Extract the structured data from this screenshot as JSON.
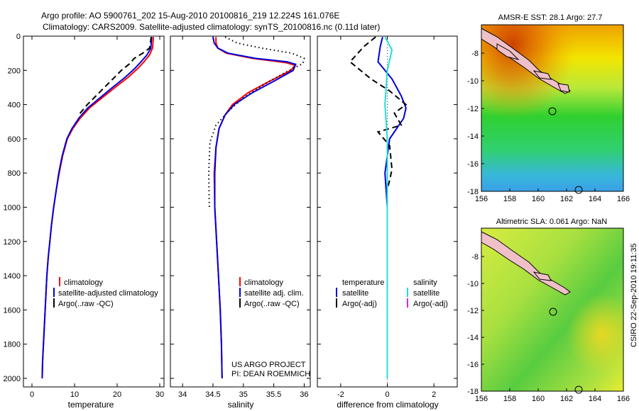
{
  "figure": {
    "title_line1": "Argo profile: AO 5900761_202 15-Aug-2010 20100816_219 12.224S 161.076E",
    "title_line2": "Climatology: CARS2009. Satellite-adjusted climatology: synTS_20100816.nc (0.11d later)",
    "side_label": "CSIRO 22-Sep-2010 19:11:35",
    "project_line1": "US ARGO PROJECT",
    "project_line2": "PI: DEAN ROEMMICH"
  },
  "colors": {
    "climatology": "#ff0000",
    "satellite": "#0000dd",
    "argo": "#000000",
    "salinity_satellite": "#22dddd",
    "salinity_argo_adj": "#dd22dd"
  },
  "chart_data": [
    {
      "type": "line",
      "title": "",
      "xlabel": "temperature",
      "ylabel": "",
      "xlim": [
        -2,
        31
      ],
      "ylim": [
        2050,
        0
      ],
      "x_ticks": [
        "0",
        "10",
        "20",
        "30"
      ],
      "y_ticks": [
        "0",
        "200",
        "400",
        "600",
        "800",
        "1000",
        "1200",
        "1400",
        "1600",
        "1800",
        "2000"
      ],
      "legend": [
        "climatology",
        "satellite-adjusted climatology",
        "Argo(..raw -QC)"
      ],
      "series": [
        {
          "name": "climatology",
          "style": "solid",
          "color_key": "climatology",
          "points": [
            [
              28.5,
              5
            ],
            [
              28.4,
              40
            ],
            [
              28.3,
              70
            ],
            [
              27.6,
              110
            ],
            [
              26.3,
              150
            ],
            [
              24.8,
              190
            ],
            [
              22.6,
              240
            ],
            [
              19.5,
              300
            ],
            [
              16.5,
              360
            ],
            [
              13.5,
              420
            ],
            [
              11.3,
              480
            ],
            [
              9.6,
              540
            ],
            [
              8.3,
              600
            ],
            [
              7.2,
              700
            ],
            [
              6.4,
              800
            ],
            [
              5.7,
              900
            ],
            [
              5.1,
              1000
            ],
            [
              4.6,
              1100
            ],
            [
              4.2,
              1200
            ],
            [
              3.8,
              1300
            ],
            [
              3.5,
              1400
            ],
            [
              3.3,
              1500
            ],
            [
              3.1,
              1600
            ],
            [
              2.9,
              1700
            ],
            [
              2.7,
              1800
            ],
            [
              2.5,
              1900
            ],
            [
              2.4,
              2000
            ]
          ]
        },
        {
          "name": "satellite-adjusted climatology",
          "style": "solid",
          "color_key": "satellite",
          "points": [
            [
              28.1,
              5
            ],
            [
              28.0,
              40
            ],
            [
              27.9,
              70
            ],
            [
              27.0,
              110
            ],
            [
              25.6,
              150
            ],
            [
              24.1,
              190
            ],
            [
              21.9,
              240
            ],
            [
              18.9,
              300
            ],
            [
              16.0,
              360
            ],
            [
              13.1,
              420
            ],
            [
              11.0,
              480
            ],
            [
              9.4,
              540
            ],
            [
              8.2,
              600
            ],
            [
              7.1,
              700
            ],
            [
              6.3,
              800
            ],
            [
              5.7,
              900
            ],
            [
              5.1,
              1000
            ],
            [
              4.6,
              1100
            ],
            [
              4.2,
              1200
            ],
            [
              3.8,
              1300
            ],
            [
              3.5,
              1400
            ],
            [
              3.3,
              1500
            ],
            [
              3.1,
              1600
            ],
            [
              2.9,
              1700
            ],
            [
              2.7,
              1800
            ],
            [
              2.5,
              1900
            ],
            [
              2.4,
              2000
            ]
          ]
        },
        {
          "name": "Argo(..raw -QC)",
          "style": "dashed",
          "color_key": "argo",
          "points": [
            [
              28.0,
              5
            ],
            [
              27.8,
              40
            ],
            [
              27.6,
              70
            ],
            [
              26.0,
              100
            ],
            [
              24.0,
              130
            ],
            [
              23.0,
              160
            ],
            [
              21.0,
              200
            ],
            [
              19.0,
              250
            ],
            [
              17.0,
              300
            ],
            [
              15.0,
              350
            ],
            [
              13.0,
              400
            ],
            [
              11.0,
              460
            ]
          ]
        }
      ]
    },
    {
      "type": "line",
      "title": "",
      "xlabel": "salinity",
      "ylabel": "",
      "xlim": [
        33.8,
        36.1
      ],
      "ylim": [
        2050,
        0
      ],
      "x_ticks": [
        "34",
        "34.5",
        "35",
        "35.5",
        "36"
      ],
      "legend": [
        "climatology",
        "satellite adj. clim.",
        "Argo(..raw -QC)"
      ],
      "series": [
        {
          "name": "climatology",
          "style": "solid",
          "color_key": "climatology",
          "points": [
            [
              34.55,
              5
            ],
            [
              34.55,
              40
            ],
            [
              34.58,
              70
            ],
            [
              34.72,
              100
            ],
            [
              35.15,
              130
            ],
            [
              35.7,
              155
            ],
            [
              35.85,
              170
            ],
            [
              35.78,
              200
            ],
            [
              35.45,
              260
            ],
            [
              35.08,
              330
            ],
            [
              34.82,
              400
            ],
            [
              34.7,
              460
            ],
            [
              34.6,
              540
            ],
            [
              34.55,
              650
            ],
            [
              34.52,
              800
            ],
            [
              34.53,
              1000
            ],
            [
              34.56,
              1200
            ],
            [
              34.59,
              1400
            ],
            [
              34.62,
              1600
            ],
            [
              34.64,
              1800
            ],
            [
              34.65,
              2000
            ]
          ]
        },
        {
          "name": "satellite adj. clim.",
          "style": "solid",
          "color_key": "satellite",
          "points": [
            [
              34.5,
              5
            ],
            [
              34.52,
              40
            ],
            [
              34.58,
              70
            ],
            [
              34.75,
              100
            ],
            [
              35.2,
              130
            ],
            [
              35.72,
              150
            ],
            [
              35.86,
              165
            ],
            [
              35.82,
              200
            ],
            [
              35.52,
              260
            ],
            [
              35.15,
              330
            ],
            [
              34.85,
              400
            ],
            [
              34.7,
              460
            ],
            [
              34.6,
              540
            ],
            [
              34.55,
              650
            ],
            [
              34.53,
              800
            ],
            [
              34.53,
              1000
            ],
            [
              34.56,
              1200
            ],
            [
              34.59,
              1400
            ],
            [
              34.62,
              1600
            ],
            [
              34.64,
              1800
            ],
            [
              34.65,
              2000
            ]
          ]
        },
        {
          "name": "Argo(..raw -QC)",
          "style": "dotted",
          "color_key": "argo",
          "points": [
            [
              34.7,
              5
            ],
            [
              34.9,
              40
            ],
            [
              35.3,
              70
            ],
            [
              35.8,
              100
            ],
            [
              36.0,
              130
            ],
            [
              35.98,
              160
            ],
            [
              35.7,
              210
            ],
            [
              35.35,
              280
            ],
            [
              35.0,
              360
            ],
            [
              34.75,
              440
            ],
            [
              34.55,
              520
            ],
            [
              34.45,
              620
            ],
            [
              34.43,
              800
            ],
            [
              34.44,
              1000
            ]
          ]
        }
      ]
    },
    {
      "type": "line",
      "title": "",
      "xlabel": "difference from climatology",
      "ylabel": "",
      "xlim": [
        -3,
        3
      ],
      "ylim": [
        2050,
        0
      ],
      "x_ticks": [
        "-2",
        "0",
        "2"
      ],
      "legend": [
        "temperature",
        "satellite",
        "Argo(-adj)",
        "salinity",
        "satellite",
        "Argo(-adj)"
      ],
      "series": [
        {
          "name": "temperature satellite",
          "style": "solid",
          "color_key": "satellite",
          "points": [
            [
              -0.2,
              5
            ],
            [
              -0.3,
              60
            ],
            [
              -0.4,
              150
            ],
            [
              0.2,
              250
            ],
            [
              0.6,
              350
            ],
            [
              0.8,
              420
            ],
            [
              0.7,
              480
            ],
            [
              0.1,
              600
            ],
            [
              -0.1,
              800
            ],
            [
              0.0,
              1000
            ],
            [
              0.0,
              1300
            ],
            [
              0.0,
              2000
            ]
          ]
        },
        {
          "name": "temperature Argo(-adj)",
          "style": "dashed",
          "color_key": "argo",
          "points": [
            [
              -0.5,
              5
            ],
            [
              -1.0,
              60
            ],
            [
              -1.6,
              150
            ],
            [
              -0.7,
              250
            ],
            [
              0.1,
              320
            ],
            [
              0.8,
              400
            ],
            [
              0.3,
              450
            ],
            [
              0.6,
              520
            ],
            [
              -0.4,
              560
            ],
            [
              0.1,
              640
            ],
            [
              0.2,
              780
            ],
            [
              0.0,
              900
            ],
            [
              0.0,
              1000
            ]
          ]
        },
        {
          "name": "salinity satellite",
          "style": "solid",
          "color_key": "salinity_satellite",
          "points": [
            [
              -0.1,
              5
            ],
            [
              0.2,
              80
            ],
            [
              0.0,
              200
            ],
            [
              -0.1,
              400
            ],
            [
              0.0,
              600
            ],
            [
              0.0,
              900
            ],
            [
              0.0,
              1200
            ],
            [
              0.0,
              1600
            ],
            [
              0.0,
              2000
            ]
          ]
        }
      ]
    }
  ],
  "maps": [
    {
      "title": "AMSR-E SST: 28.1 Argo: 27.7",
      "x_ticks": [
        "156",
        "158",
        "160",
        "162",
        "164",
        "166"
      ],
      "y_ticks": [
        "-8",
        "-10",
        "-12",
        "-14",
        "-16",
        "-18"
      ]
    },
    {
      "title": "Altimetric SLA: 0.061 Argo: NaN",
      "x_ticks": [
        "156",
        "158",
        "160",
        "162",
        "164",
        "166"
      ],
      "y_ticks": [
        "-8",
        "-10",
        "-12",
        "-14",
        "-16",
        "-18"
      ]
    }
  ]
}
